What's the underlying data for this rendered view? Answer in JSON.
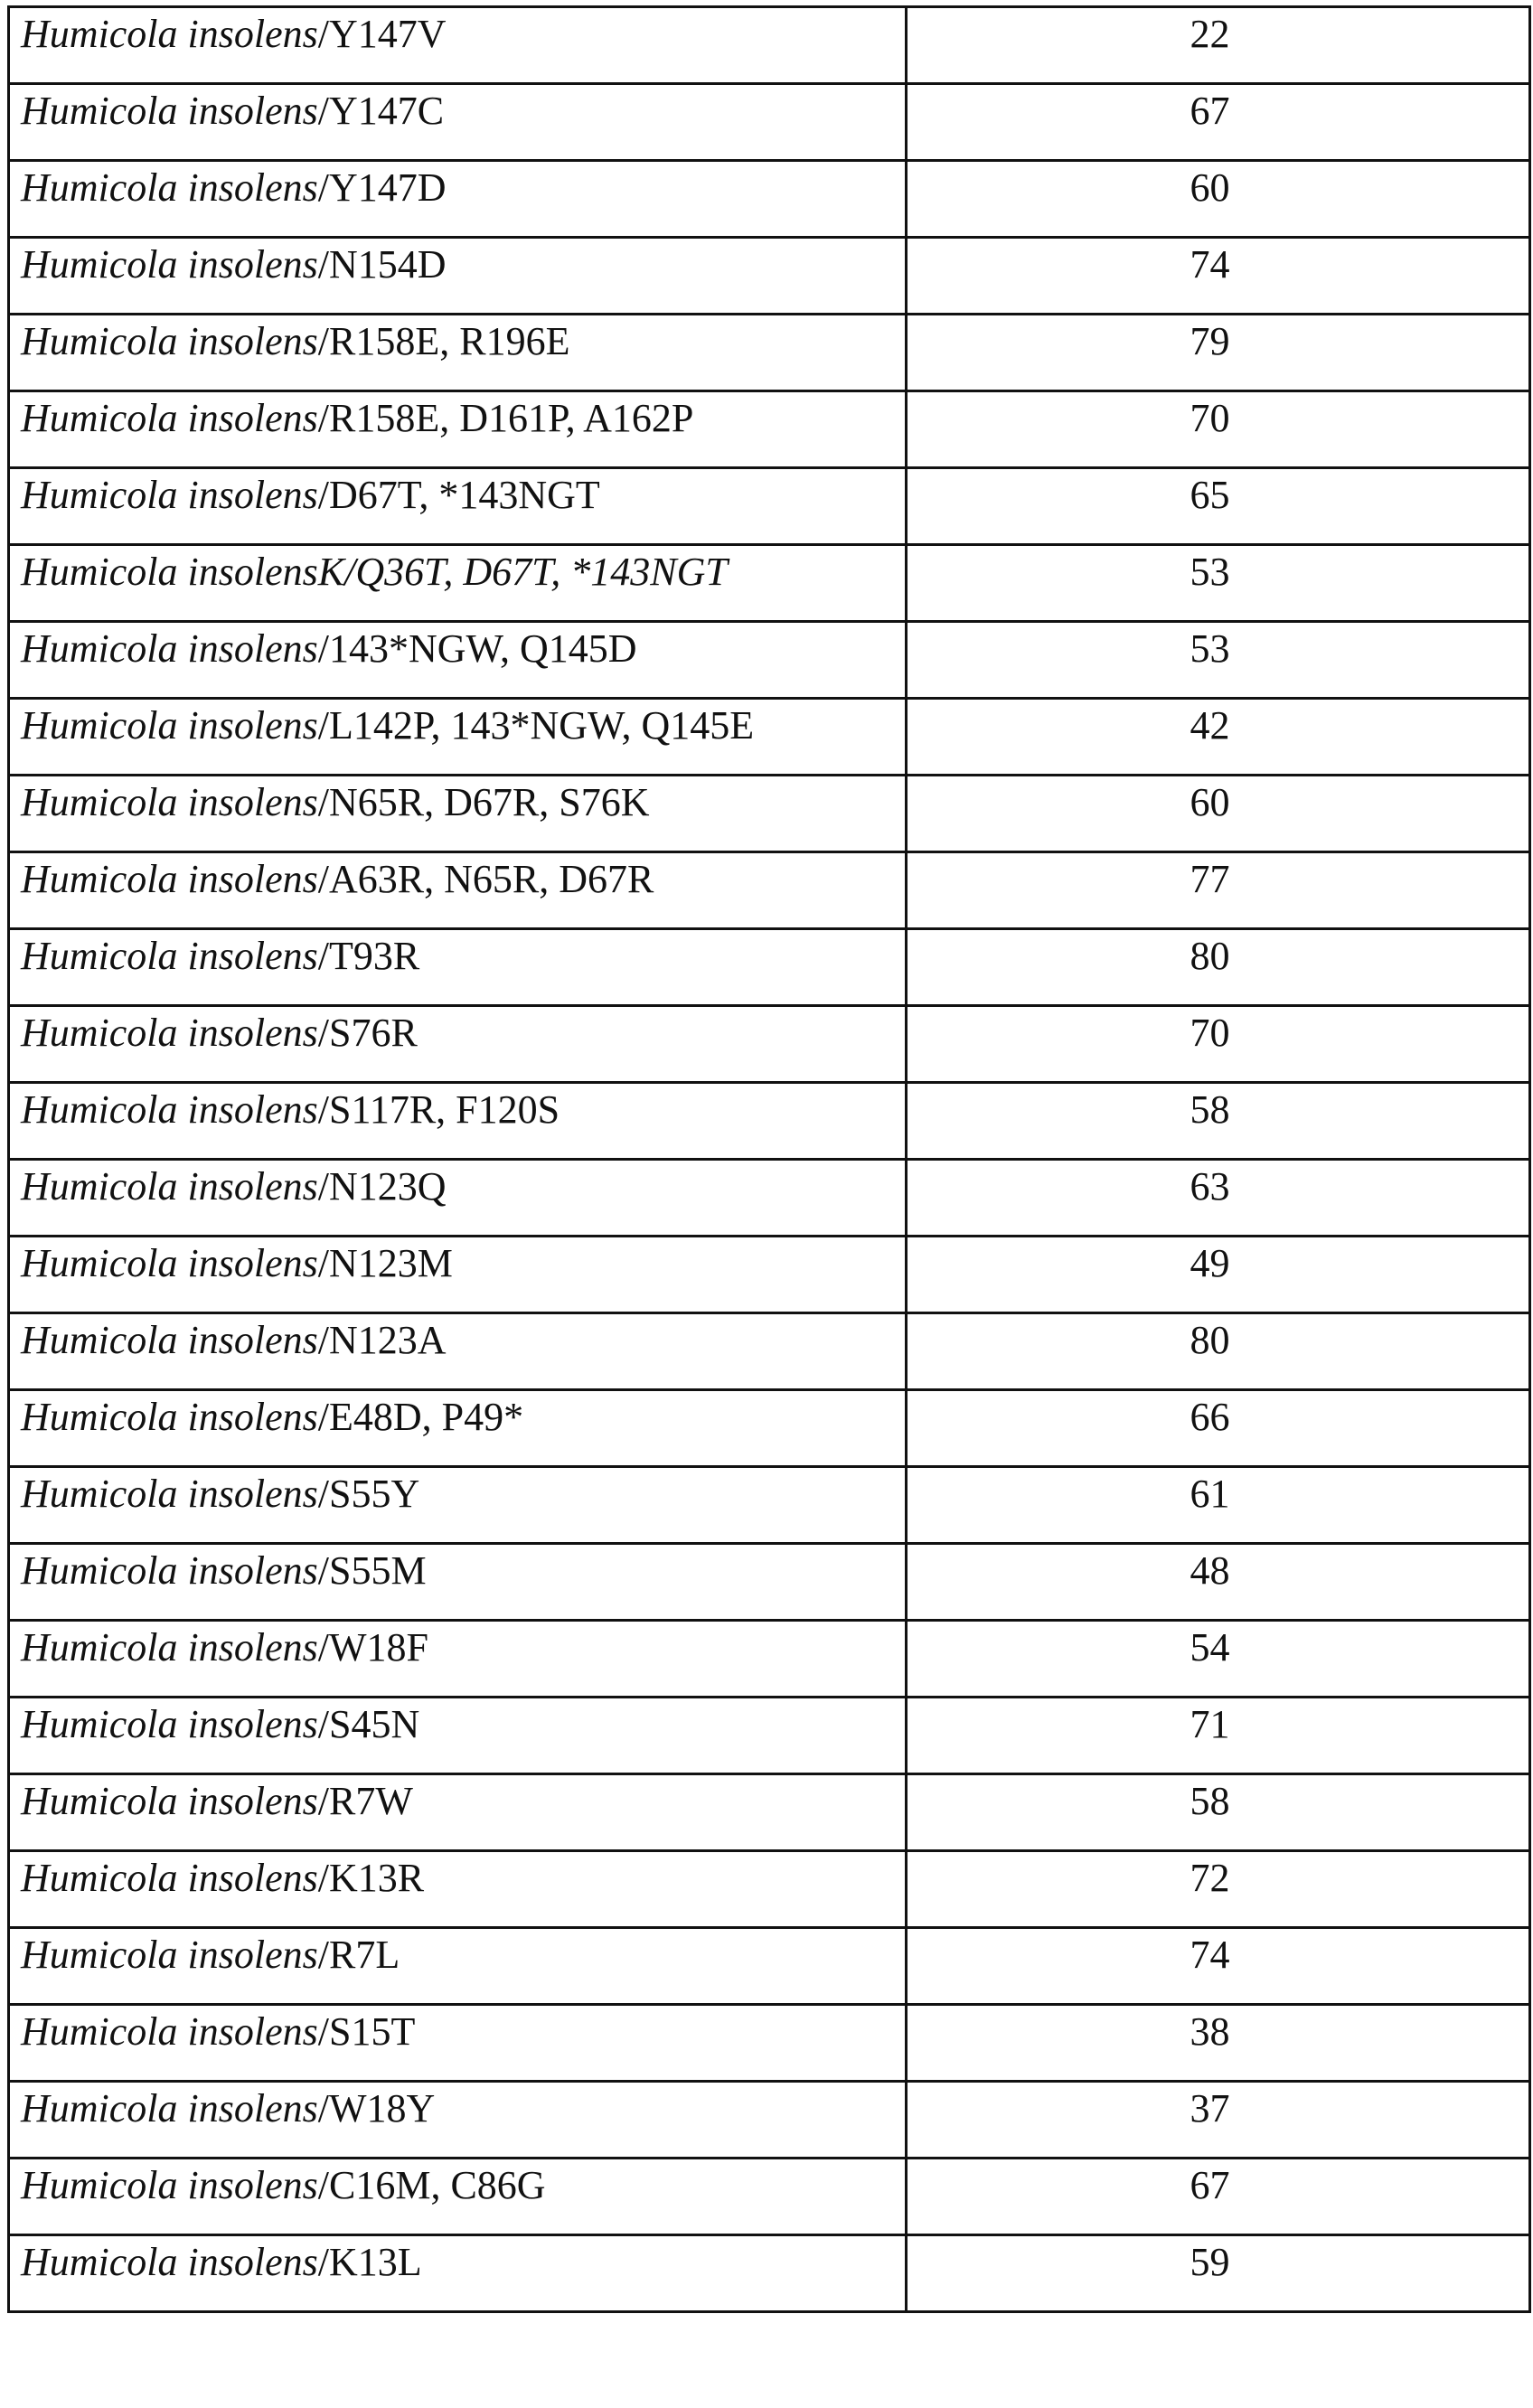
{
  "rows": [
    {
      "species": "Humicola insolens",
      "mutation": "/Y147V",
      "value": "22"
    },
    {
      "species": "Humicola insolens",
      "mutation": "/Y147C",
      "value": "67"
    },
    {
      "species": "Humicola insolens",
      "mutation": "/Y147D",
      "value": "60"
    },
    {
      "species": "Humicola insolens",
      "mutation": "/N154D",
      "value": "74"
    },
    {
      "species": "Humicola insolens",
      "mutation": "/R158E, R196E",
      "value": "79"
    },
    {
      "species": "Humicola insolens",
      "mutation": "/R158E, D161P, A162P",
      "value": "70"
    },
    {
      "species": "Humicola insolens",
      "mutation": "/D67T, *143NGT",
      "value": "65"
    },
    {
      "species": "Humicola insolens",
      "mutation": "K/Q36T, D67T, *143NGT",
      "value": "53",
      "all_italic": true
    },
    {
      "species": "Humicola insolens",
      "mutation": "/143*NGW, Q145D",
      "value": "53"
    },
    {
      "species": "Humicola insolens",
      "mutation": "/L142P, 143*NGW, Q145E",
      "value": "42"
    },
    {
      "species": "Humicola insolens",
      "mutation": "/N65R, D67R, S76K",
      "value": "60"
    },
    {
      "species": "Humicola insolens",
      "mutation": "/A63R, N65R, D67R",
      "value": "77"
    },
    {
      "species": "Humicola insolens",
      "mutation": "/T93R",
      "value": "80"
    },
    {
      "species": "Humicola insolens",
      "mutation": "/S76R",
      "value": "70"
    },
    {
      "species": "Humicola insolens",
      "mutation": "/S117R, F120S",
      "value": "58"
    },
    {
      "species": "Humicola insolens",
      "mutation": "/N123Q",
      "value": "63"
    },
    {
      "species": "Humicola insolens",
      "mutation": "/N123M",
      "value": "49"
    },
    {
      "species": "Humicola insolens",
      "mutation": "/N123A",
      "value": "80"
    },
    {
      "species": "Humicola insolens",
      "mutation": "/E48D, P49*",
      "value": "66"
    },
    {
      "species": "Humicola insolens",
      "mutation": "/S55Y",
      "value": "61"
    },
    {
      "species": "Humicola insolens",
      "mutation": "/S55M",
      "value": "48"
    },
    {
      "species": "Humicola insolens",
      "mutation": "/W18F",
      "value": "54"
    },
    {
      "species": "Humicola insolens",
      "mutation": "/S45N",
      "value": "71"
    },
    {
      "species": "Humicola insolens",
      "mutation": "/R7W",
      "value": "58"
    },
    {
      "species": "Humicola insolens",
      "mutation": "/K13R",
      "value": "72"
    },
    {
      "species": "Humicola insolens",
      "mutation": "/R7L",
      "value": "74"
    },
    {
      "species": "Humicola insolens",
      "mutation": "/S15T",
      "value": "38"
    },
    {
      "species": "Humicola insolens",
      "mutation": "/W18Y",
      "value": "37"
    },
    {
      "species": "Humicola insolens",
      "mutation": "/C16M, C86G",
      "value": "67"
    },
    {
      "species": "Humicola insolens",
      "mutation": "/K13L",
      "value": "59"
    }
  ]
}
